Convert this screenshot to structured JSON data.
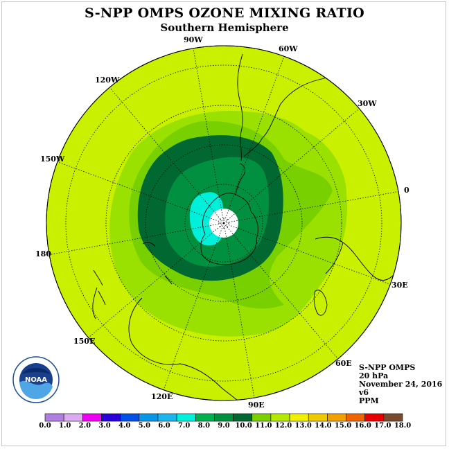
{
  "title": "S-NPP OMPS OZONE MIXING RATIO",
  "subtitle": "Southern Hemisphere",
  "longitude_labels": [
    {
      "name": "lon-90w",
      "text": "90W"
    },
    {
      "name": "lon-60w",
      "text": "60W"
    },
    {
      "name": "lon-30w",
      "text": "30W"
    },
    {
      "name": "lon-0",
      "text": "0"
    },
    {
      "name": "lon-30e",
      "text": "30E"
    },
    {
      "name": "lon-60e",
      "text": "60E"
    },
    {
      "name": "lon-90e",
      "text": "90E"
    },
    {
      "name": "lon-120e",
      "text": "120E"
    },
    {
      "name": "lon-150e",
      "text": "150E"
    },
    {
      "name": "lon-180",
      "text": "180"
    },
    {
      "name": "lon-150w",
      "text": "150W"
    },
    {
      "name": "lon-120w",
      "text": "120W"
    }
  ],
  "info": {
    "instrument": "S-NPP OMPS",
    "level": "20 hPa",
    "date": "November 24, 2016",
    "version": "v6",
    "units": "PPM"
  },
  "logo_text": "NOAA",
  "colorbar": {
    "ticks": [
      "0.0",
      "1.0",
      "2.0",
      "3.0",
      "4.0",
      "5.0",
      "6.0",
      "7.0",
      "8.0",
      "9.0",
      "10.0",
      "11.0",
      "12.0",
      "13.0",
      "14.0",
      "15.0",
      "16.0",
      "17.0",
      "18.0"
    ],
    "colors": [
      "#b07ee0",
      "#dcaaf0",
      "#f000f0",
      "#2a00d8",
      "#0050e6",
      "#0a96e6",
      "#1cb4ec",
      "#00f0dc",
      "#00b050",
      "#009040",
      "#006830",
      "#7cd000",
      "#b4ea00",
      "#f0f000",
      "#f0c800",
      "#f0a000",
      "#f06400",
      "#e60000",
      "#7a4a30"
    ]
  },
  "map": {
    "background_level": "12.0-13.0",
    "pole_region": "white (no data)"
  }
}
